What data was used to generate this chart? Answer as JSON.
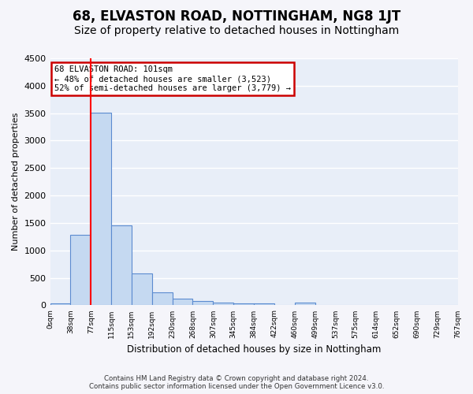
{
  "title": "68, ELVASTON ROAD, NOTTINGHAM, NG8 1JT",
  "subtitle": "Size of property relative to detached houses in Nottingham",
  "xlabel": "Distribution of detached houses by size in Nottingham",
  "ylabel": "Number of detached properties",
  "footer_line1": "Contains HM Land Registry data © Crown copyright and database right 2024.",
  "footer_line2": "Contains public sector information licensed under the Open Government Licence v3.0.",
  "bin_labels": [
    "0sqm",
    "38sqm",
    "77sqm",
    "115sqm",
    "153sqm",
    "192sqm",
    "230sqm",
    "268sqm",
    "307sqm",
    "345sqm",
    "384sqm",
    "422sqm",
    "460sqm",
    "499sqm",
    "537sqm",
    "575sqm",
    "614sqm",
    "652sqm",
    "690sqm",
    "729sqm",
    "767sqm"
  ],
  "bar_values": [
    30,
    1280,
    3510,
    1460,
    575,
    240,
    115,
    80,
    55,
    40,
    40,
    0,
    55,
    0,
    0,
    0,
    0,
    0,
    0,
    0
  ],
  "bar_color": "#c5d9f1",
  "bar_edge_color": "#5b8bd0",
  "ylim": [
    0,
    4500
  ],
  "yticks": [
    0,
    500,
    1000,
    1500,
    2000,
    2500,
    3000,
    3500,
    4000,
    4500
  ],
  "subject_line_color": "#ff0000",
  "annotation_text_line1": "68 ELVASTON ROAD: 101sqm",
  "annotation_text_line2": "← 48% of detached houses are smaller (3,523)",
  "annotation_text_line3": "52% of semi-detached houses are larger (3,779) →",
  "annotation_box_edgecolor": "#cc0000",
  "background_color": "#e8eef8",
  "grid_color": "#ffffff",
  "title_fontsize": 12,
  "subtitle_fontsize": 10
}
